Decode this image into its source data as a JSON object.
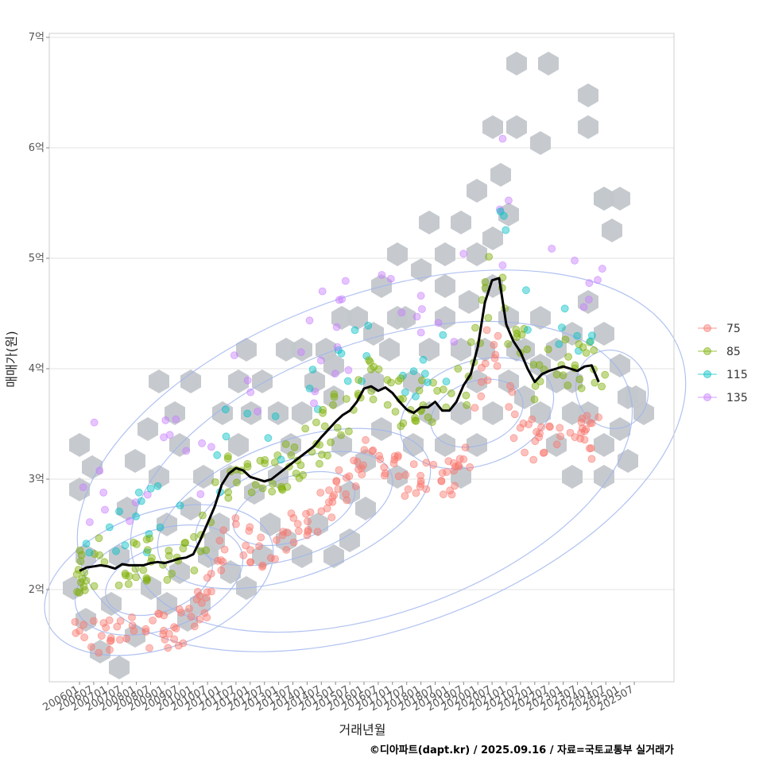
{
  "chart_data": {
    "type": "scatter",
    "xlabel": "거래년월",
    "ylabel": "매매가(원)",
    "caption": "©디아파트(dapt.kr) / 2025.09.16 / 자료=국토교통부 실거래가",
    "ylim": [
      1.3,
      7.1
    ],
    "y_ticks": [
      {
        "value": 2,
        "label": "2억"
      },
      {
        "value": 3,
        "label": "3억"
      },
      {
        "value": 4,
        "label": "4억"
      },
      {
        "value": 5,
        "label": "5억"
      },
      {
        "value": 6,
        "label": "6억"
      },
      {
        "value": 7,
        "label": "7억"
      }
    ],
    "x_ticks": [
      "200601",
      "200607",
      "200701",
      "200707",
      "200801",
      "200807",
      "200901",
      "200907",
      "201001",
      "201007",
      "201101",
      "201107",
      "201201",
      "201207",
      "201301",
      "201307",
      "201401",
      "201407",
      "201501",
      "201507",
      "201601",
      "201607",
      "201701",
      "201707",
      "201801",
      "201807",
      "201901",
      "201907",
      "202001",
      "202007",
      "202101",
      "202107",
      "202201",
      "202207",
      "202301",
      "202307",
      "202401",
      "202407",
      "202501",
      "202507"
    ],
    "grid": true,
    "legend_position": "right",
    "series": [
      {
        "name": "75",
        "color": "#F8766D"
      },
      {
        "name": "85",
        "color": "#7CAE00"
      },
      {
        "name": "115",
        "color": "#00BFC4"
      },
      {
        "name": "135",
        "color": "#C77CFF"
      }
    ],
    "trend_line": {
      "color": "#000000",
      "points": [
        [
          "200601",
          2.17
        ],
        [
          "200604",
          2.2
        ],
        [
          "200607",
          2.21
        ],
        [
          "200610",
          2.22
        ],
        [
          "200701",
          2.21
        ],
        [
          "200704",
          2.19
        ],
        [
          "200707",
          2.23
        ],
        [
          "200710",
          2.22
        ],
        [
          "200801",
          2.22
        ],
        [
          "200804",
          2.22
        ],
        [
          "200807",
          2.24
        ],
        [
          "200810",
          2.25
        ],
        [
          "200901",
          2.24
        ],
        [
          "200904",
          2.26
        ],
        [
          "200907",
          2.28
        ],
        [
          "200910",
          2.29
        ],
        [
          "201001",
          2.32
        ],
        [
          "201004",
          2.45
        ],
        [
          "201007",
          2.6
        ],
        [
          "201010",
          2.75
        ],
        [
          "201101",
          2.95
        ],
        [
          "201104",
          3.05
        ],
        [
          "201107",
          3.1
        ],
        [
          "201110",
          3.08
        ],
        [
          "201201",
          3.02
        ],
        [
          "201204",
          3.0
        ],
        [
          "201207",
          2.98
        ],
        [
          "201210",
          3.0
        ],
        [
          "201301",
          3.05
        ],
        [
          "201304",
          3.1
        ],
        [
          "201307",
          3.15
        ],
        [
          "201310",
          3.2
        ],
        [
          "201401",
          3.25
        ],
        [
          "201404",
          3.3
        ],
        [
          "201407",
          3.38
        ],
        [
          "201410",
          3.45
        ],
        [
          "201501",
          3.52
        ],
        [
          "201504",
          3.58
        ],
        [
          "201507",
          3.62
        ],
        [
          "201510",
          3.7
        ],
        [
          "201601",
          3.82
        ],
        [
          "201604",
          3.84
        ],
        [
          "201607",
          3.8
        ],
        [
          "201610",
          3.83
        ],
        [
          "201701",
          3.78
        ],
        [
          "201704",
          3.7
        ],
        [
          "201707",
          3.63
        ],
        [
          "201710",
          3.6
        ],
        [
          "201801",
          3.65
        ],
        [
          "201804",
          3.65
        ],
        [
          "201807",
          3.7
        ],
        [
          "201810",
          3.62
        ],
        [
          "201901",
          3.62
        ],
        [
          "201904",
          3.7
        ],
        [
          "201907",
          3.85
        ],
        [
          "201910",
          3.95
        ],
        [
          "202001",
          4.2
        ],
        [
          "202004",
          4.6
        ],
        [
          "202007",
          4.8
        ],
        [
          "202010",
          4.82
        ],
        [
          "202101",
          4.4
        ],
        [
          "202104",
          4.25
        ],
        [
          "202107",
          4.15
        ],
        [
          "202110",
          4.0
        ],
        [
          "202201",
          3.88
        ],
        [
          "202204",
          3.95
        ],
        [
          "202207",
          3.98
        ],
        [
          "202210",
          4.0
        ],
        [
          "202301",
          4.02
        ],
        [
          "202304",
          4.0
        ],
        [
          "202307",
          3.98
        ],
        [
          "202310",
          4.02
        ],
        [
          "202401",
          4.03
        ],
        [
          "202404",
          3.88
        ]
      ]
    }
  }
}
